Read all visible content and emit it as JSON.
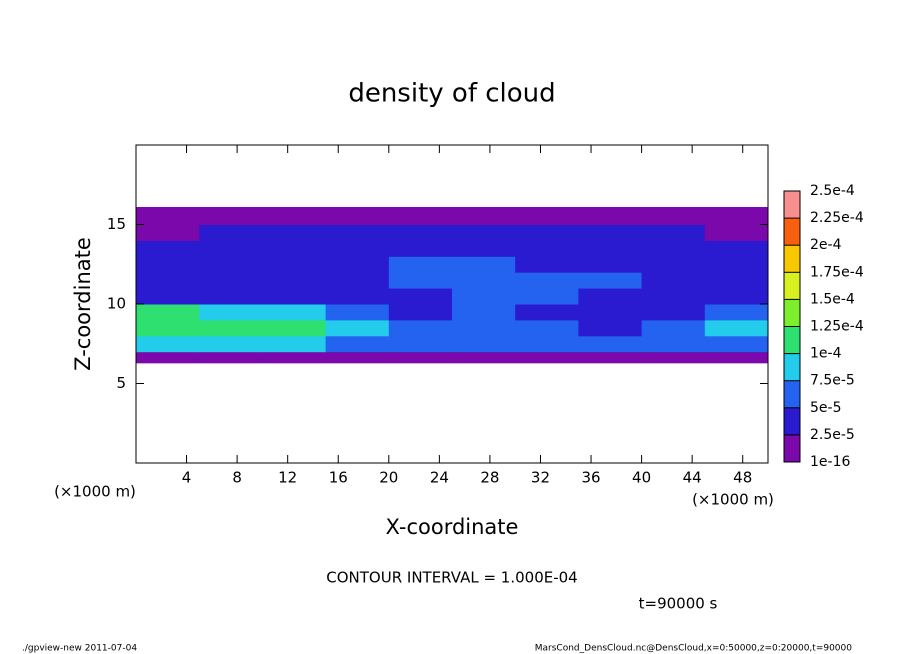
{
  "chart_data": {
    "type": "contour",
    "title": "density of cloud",
    "x_label": "X-coordinate",
    "y_label": "Z-coordinate",
    "x_unit": "(×1000 m)",
    "contour_note": "CONTOUR INTERVAL = 1.000E-04",
    "time_note": "t=90000 s",
    "footer_left": "./gpview-new  2011-07-04",
    "footer_right": "MarsCond_DensCloud.nc@DensCloud,x=0:50000,z=0:20000,t=90000",
    "xlim": [
      0,
      50
    ],
    "xticks": [
      4,
      8,
      12,
      16,
      20,
      24,
      28,
      32,
      36,
      40,
      44,
      48
    ],
    "ylim": [
      0,
      20
    ],
    "yticks": [
      5,
      10,
      15
    ],
    "xbins": [
      0,
      5,
      10,
      15,
      20,
      25,
      30,
      35,
      40,
      45,
      50
    ],
    "zbins": [
      6.3,
      7,
      8,
      9,
      10,
      11,
      12,
      13,
      14,
      15,
      16.1
    ],
    "values": [
      [
        1e-05,
        1e-05,
        1e-05,
        1e-05,
        1e-05,
        1e-05,
        1e-05,
        1e-05,
        1e-05,
        1e-05
      ],
      [
        8e-05,
        8e-05,
        8e-05,
        7e-05,
        6e-05,
        6e-05,
        6e-05,
        6e-05,
        6e-05,
        7e-05
      ],
      [
        0.00011,
        0.000105,
        0.000105,
        8.5e-05,
        6e-05,
        7e-05,
        5e-05,
        4e-05,
        5e-05,
        9e-05
      ],
      [
        0.000105,
        9e-05,
        8e-05,
        6e-05,
        4e-05,
        5e-05,
        4e-05,
        4.5e-05,
        3e-05,
        6e-05
      ],
      [
        4e-05,
        3.5e-05,
        3e-05,
        3e-05,
        4e-05,
        5e-05,
        5.5e-05,
        4e-05,
        3e-05,
        3e-05
      ],
      [
        3e-05,
        3e-05,
        3e-05,
        4e-05,
        5.5e-05,
        6e-05,
        6e-05,
        5e-05,
        3e-05,
        3e-05
      ],
      [
        3e-05,
        3e-05,
        3e-05,
        3.5e-05,
        6e-05,
        5.5e-05,
        4e-05,
        4e-05,
        3e-05,
        3e-05
      ],
      [
        2.6e-05,
        2.6e-05,
        3e-05,
        3e-05,
        3e-05,
        3e-05,
        3e-05,
        3e-05,
        3e-05,
        2.6e-05
      ],
      [
        2e-05,
        2.6e-05,
        2.6e-05,
        2.6e-05,
        2.6e-05,
        2.6e-05,
        2.6e-05,
        2.6e-05,
        2.6e-05,
        2e-05
      ],
      [
        1e-05,
        1e-05,
        1e-05,
        1e-05,
        1e-05,
        1e-05,
        1e-05,
        1e-05,
        1e-05,
        1e-05
      ]
    ],
    "levels": [
      {
        "value": 1e-16,
        "label": "1e-16"
      },
      {
        "value": 2.5e-05,
        "label": "2.5e-5"
      },
      {
        "value": 5e-05,
        "label": "5e-5"
      },
      {
        "value": 7.5e-05,
        "label": "7.5e-5"
      },
      {
        "value": 0.0001,
        "label": "1e-4"
      },
      {
        "value": 0.000125,
        "label": "1.25e-4"
      },
      {
        "value": 0.00015,
        "label": "1.5e-4"
      },
      {
        "value": 0.000175,
        "label": "1.75e-4"
      },
      {
        "value": 0.0002,
        "label": "2e-4"
      },
      {
        "value": 0.000225,
        "label": "2.25e-4"
      },
      {
        "value": 0.00025,
        "label": "2.5e-4"
      }
    ],
    "colors": [
      "#7a08aa",
      "#2a1ad0",
      "#2462f0",
      "#22ccea",
      "#2ee070",
      "#7cee2c",
      "#d8f020",
      "#f8c800",
      "#f86010",
      "#f89090"
    ]
  }
}
